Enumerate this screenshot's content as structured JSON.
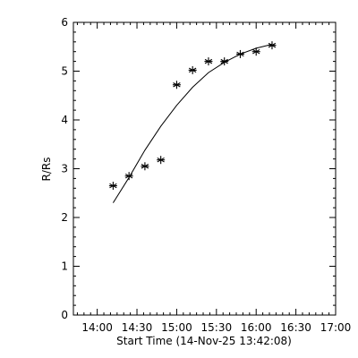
{
  "chart_data": {
    "type": "scatter",
    "xlabel": "Start Time (14-Nov-25 13:42:08)",
    "ylabel": "R/Rs",
    "xlim": [
      "13:42",
      "17:00"
    ],
    "ylim": [
      0,
      6
    ],
    "x_ticks": [
      "14:00",
      "14:30",
      "15:00",
      "15:30",
      "16:00",
      "16:30",
      "17:00"
    ],
    "y_ticks": [
      "0",
      "1",
      "2",
      "3",
      "4",
      "5",
      "6"
    ],
    "grid": false,
    "marker": "asterisk",
    "points": [
      {
        "x": "14:12",
        "y": 2.65
      },
      {
        "x": "14:24",
        "y": 2.85
      },
      {
        "x": "14:36",
        "y": 3.05
      },
      {
        "x": "14:48",
        "y": 3.18
      },
      {
        "x": "15:00",
        "y": 4.72
      },
      {
        "x": "15:12",
        "y": 5.02
      },
      {
        "x": "15:24",
        "y": 5.2
      },
      {
        "x": "15:36",
        "y": 5.2
      },
      {
        "x": "15:48",
        "y": 5.35
      },
      {
        "x": "16:00",
        "y": 5.4
      },
      {
        "x": "16:12",
        "y": 5.53
      }
    ],
    "fit_curve": [
      {
        "x": "14:12",
        "y": 2.3
      },
      {
        "x": "14:24",
        "y": 2.82
      },
      {
        "x": "14:36",
        "y": 3.38
      },
      {
        "x": "14:48",
        "y": 3.87
      },
      {
        "x": "15:00",
        "y": 4.3
      },
      {
        "x": "15:12",
        "y": 4.67
      },
      {
        "x": "15:24",
        "y": 4.97
      },
      {
        "x": "15:36",
        "y": 5.18
      },
      {
        "x": "15:48",
        "y": 5.35
      },
      {
        "x": "16:00",
        "y": 5.47
      },
      {
        "x": "16:12",
        "y": 5.55
      }
    ]
  }
}
